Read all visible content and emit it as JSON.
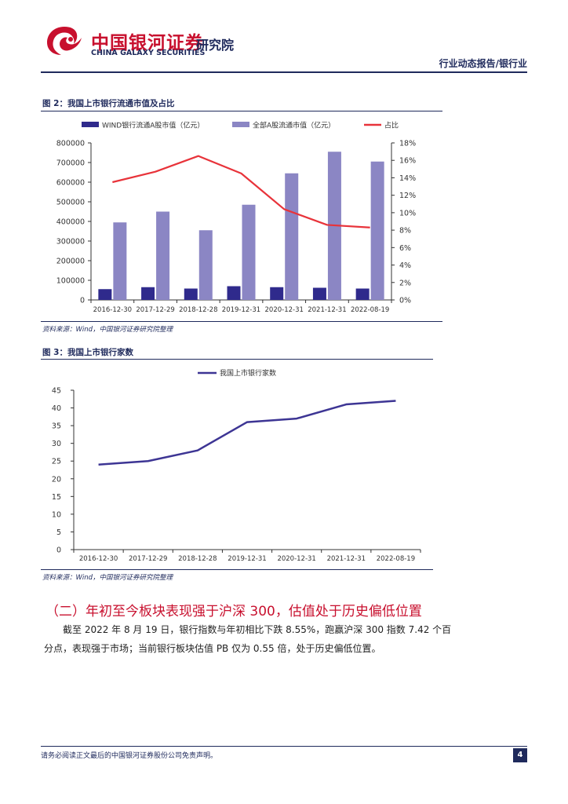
{
  "header": {
    "logo_cn": "中国银河证券",
    "logo_en": "CHINA GALAXY SECURITIES",
    "institute": "研究院",
    "doc_type": "行业动态报告/银行业",
    "logo_colors": {
      "primary": "#c8102e",
      "secondary": "#1f2a5c"
    }
  },
  "figure2": {
    "title": "图 2：我国上市银行流通市值及占比",
    "source": "资料来源：Wind，中国银河证券研究院整理"
  },
  "figure3": {
    "title": "图 3：我国上市银行家数",
    "source": "资料来源：Wind，中国银河证券研究院整理"
  },
  "section": {
    "title": "（二）年初至今板块表现强于沪深 300，估值处于历史偏低位置",
    "paragraph_line1": "截至 2022 年 8 月 19 日，银行指数与年初相比下跌 8.55%，跑赢沪深 300 指数 7.42 个百",
    "paragraph_line2": "分点，表现强于市场；当前银行板块估值 PB 仅为 0.55 倍，处于历史偏低位置。"
  },
  "footer": {
    "disclaimer": "请务必阅读正文最后的中国银河证券股份公司免责声明。",
    "page_number": "4"
  },
  "chart_data": [
    {
      "type": "bar+line",
      "categories": [
        "2016-12-30",
        "2017-12-29",
        "2018-12-28",
        "2019-12-31",
        "2020-12-31",
        "2021-12-31",
        "2022-08-19"
      ],
      "series": [
        {
          "name": "WIND银行流通A股市值（亿元）",
          "kind": "bar",
          "axis": "left",
          "color": "#2f2a8c",
          "values": [
            55000,
            65000,
            58000,
            70000,
            65000,
            62000,
            58000
          ]
        },
        {
          "name": "全部A股流通市值（亿元）",
          "kind": "bar",
          "axis": "left",
          "color": "#8b86c4",
          "values": [
            395000,
            450000,
            355000,
            485000,
            645000,
            755000,
            705000
          ]
        },
        {
          "name": "占比",
          "kind": "line",
          "axis": "right",
          "color": "#e8333a",
          "values": [
            13.5,
            14.7,
            16.5,
            14.5,
            10.4,
            8.6,
            8.3
          ]
        }
      ],
      "yleft": {
        "min": 0,
        "max": 800000,
        "ticks": [
          "0",
          "100000",
          "200000",
          "300000",
          "400000",
          "500000",
          "600000",
          "700000",
          "800000"
        ]
      },
      "yright": {
        "min": 0,
        "max": 18,
        "ticks": [
          "0%",
          "2%",
          "4%",
          "6%",
          "8%",
          "10%",
          "12%",
          "14%",
          "16%",
          "18%"
        ]
      },
      "legend": "top",
      "grid": false
    },
    {
      "type": "line",
      "categories": [
        "2016-12-30",
        "2017-12-29",
        "2018-12-28",
        "2019-12-31",
        "2020-12-31",
        "2021-12-31",
        "2022-08-19"
      ],
      "series": [
        {
          "name": "我国上市银行家数",
          "color": "#3d3594",
          "values": [
            24,
            25,
            28,
            36,
            37,
            41,
            42
          ]
        }
      ],
      "ylim": [
        0,
        45
      ],
      "yticks": [
        "0",
        "5",
        "10",
        "15",
        "20",
        "25",
        "30",
        "35",
        "40",
        "45"
      ],
      "legend": "top",
      "grid": false
    }
  ]
}
